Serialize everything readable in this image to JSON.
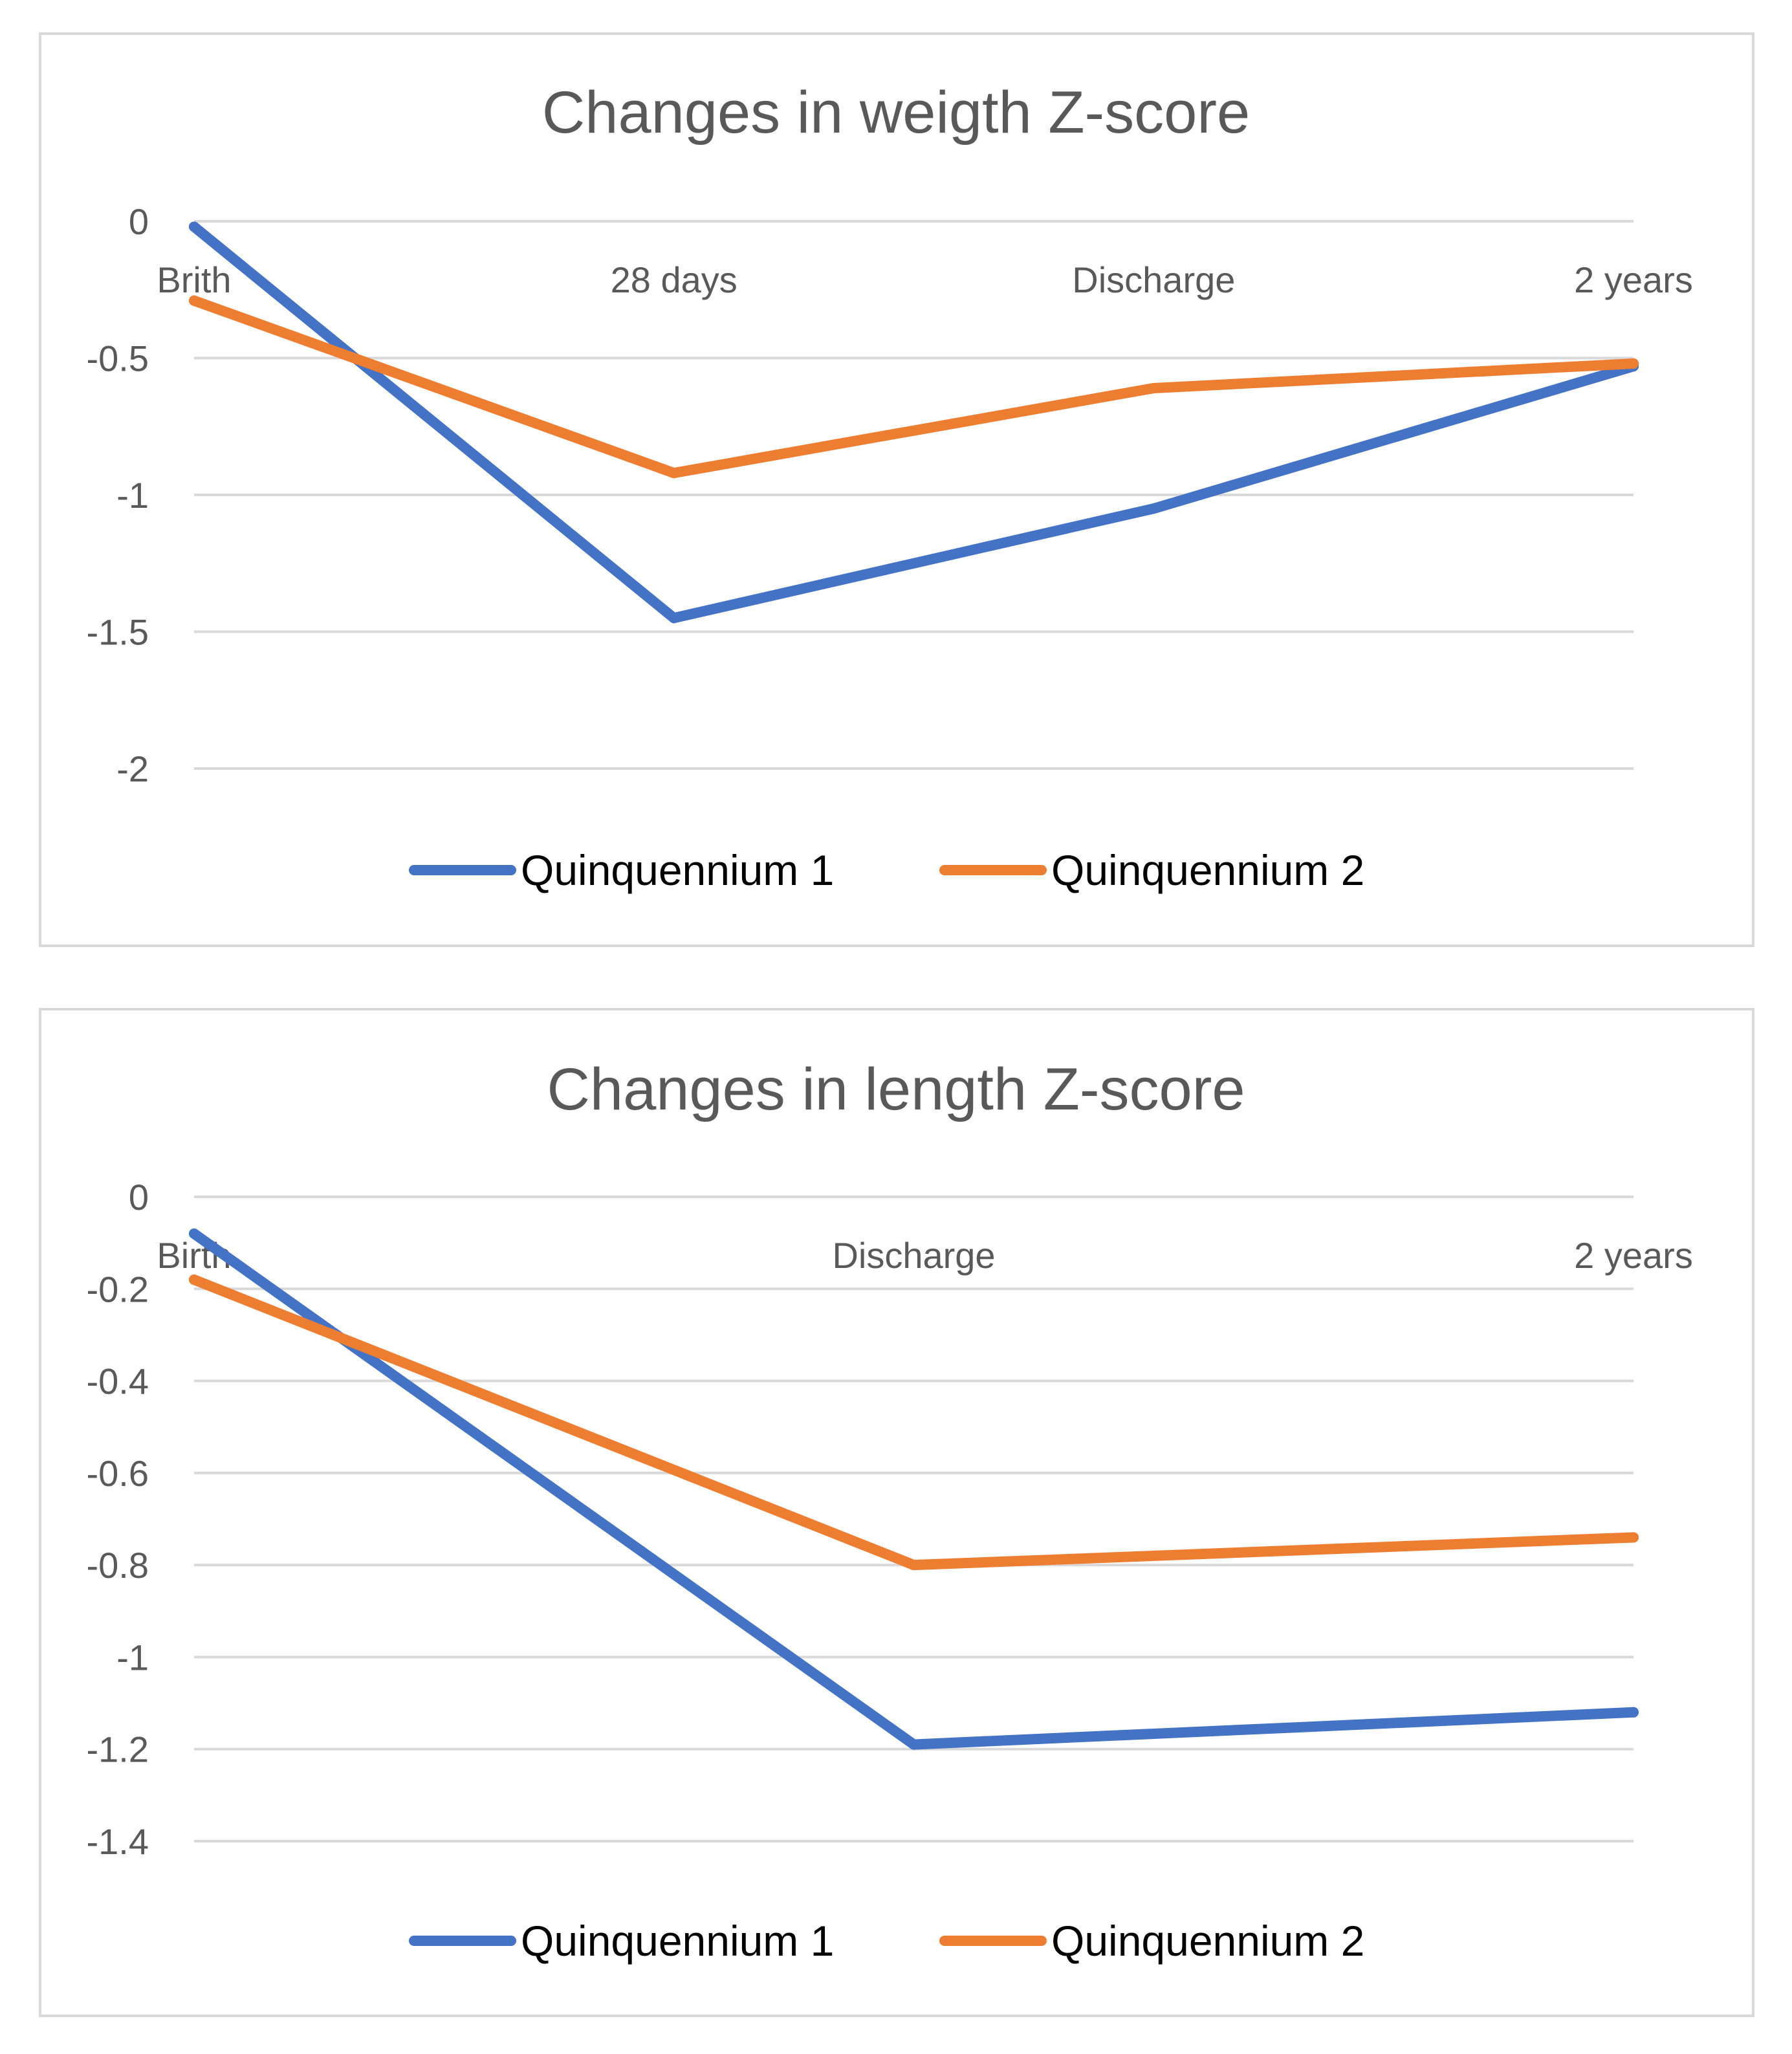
{
  "colors": {
    "series1": "#4472C4",
    "series2": "#ED7D31"
  },
  "chart_data": [
    {
      "type": "line",
      "title": "Changes in weigth Z-score",
      "categories": [
        "Brith",
        "28 days",
        "Discharge",
        "2 years"
      ],
      "series": [
        {
          "name": "Quinquennium 1",
          "values": [
            -0.02,
            -1.45,
            -1.05,
            -0.53
          ]
        },
        {
          "name": "Quinquennium 2",
          "values": [
            -0.29,
            -0.92,
            -0.61,
            -0.52
          ]
        }
      ],
      "yticks": [
        0,
        -0.5,
        -1,
        -1.5,
        -2
      ],
      "ytick_labels": [
        "0",
        "-0.5",
        "-1",
        "-1.5",
        "-2"
      ],
      "ylim": [
        -2,
        0
      ],
      "xlabel": "",
      "ylabel": "",
      "grid": true,
      "legend": "bottom"
    },
    {
      "type": "line",
      "title": "Changes in length Z-score",
      "categories": [
        "Birth",
        "Discharge",
        "2 years"
      ],
      "series": [
        {
          "name": "Quinquennium 1",
          "values": [
            -0.08,
            -1.19,
            -1.12
          ]
        },
        {
          "name": "Quinquennium 2",
          "values": [
            -0.18,
            -0.8,
            -0.74
          ]
        }
      ],
      "yticks": [
        0,
        -0.2,
        -0.4,
        -0.6,
        -0.8,
        -1,
        -1.2,
        -1.4
      ],
      "ytick_labels": [
        "0",
        "-0.2",
        "-0.4",
        "-0.6",
        "-0.8",
        "-1",
        "-1.2",
        "-1.4"
      ],
      "ylim": [
        -1.4,
        0
      ],
      "xlabel": "",
      "ylabel": "",
      "grid": true,
      "legend": "bottom"
    }
  ]
}
